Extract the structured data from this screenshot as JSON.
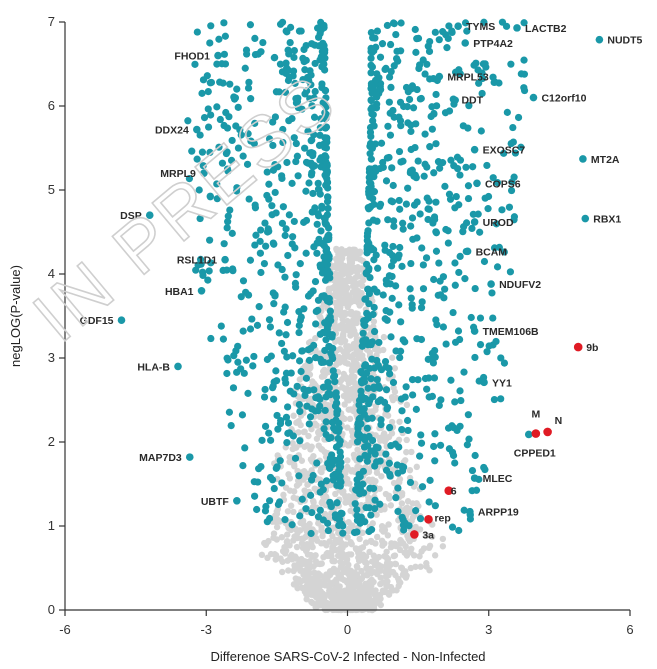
{
  "watermark": "IN PRESS",
  "chart_data": {
    "type": "scatter",
    "title": "",
    "xlabel": "Differenoe SARS-CoV-2 Infected - Non-Infected",
    "ylabel": "negLOG(P-value)",
    "xlim": [
      -6,
      6
    ],
    "ylim": [
      0,
      7
    ],
    "xticks": [
      -6,
      -3,
      0,
      3,
      6
    ],
    "yticks": [
      0,
      1,
      2,
      3,
      4,
      5,
      6,
      7
    ],
    "grid": false,
    "colors": {
      "significant": "#1a98a8",
      "nonsignificant": "#d4d4d4",
      "viral": "#e01b24"
    },
    "labeled_points": [
      {
        "label": "TYMS",
        "x": 2.35,
        "y": 6.95,
        "group": "significant"
      },
      {
        "label": "LACTB2",
        "x": 3.6,
        "y": 6.93,
        "group": "significant"
      },
      {
        "label": "NUDT5",
        "x": 5.35,
        "y": 6.79,
        "group": "significant"
      },
      {
        "label": "PTP4A2",
        "x": 2.5,
        "y": 6.75,
        "group": "significant"
      },
      {
        "label": "FHOD1",
        "x": -2.75,
        "y": 6.6,
        "group": "significant"
      },
      {
        "label": "MRPL53",
        "x": 1.95,
        "y": 6.35,
        "group": "significant"
      },
      {
        "label": "DDT",
        "x": 2.25,
        "y": 6.08,
        "group": "significant"
      },
      {
        "label": "C12orf10",
        "x": 3.95,
        "y": 6.1,
        "group": "significant"
      },
      {
        "label": "DDX24",
        "x": -3.2,
        "y": 5.72,
        "group": "significant"
      },
      {
        "label": "MRPL9",
        "x": -3.05,
        "y": 5.2,
        "group": "significant"
      },
      {
        "label": "EXOSC7",
        "x": 2.7,
        "y": 5.48,
        "group": "significant"
      },
      {
        "label": "MT2A",
        "x": 5.0,
        "y": 5.37,
        "group": "significant"
      },
      {
        "label": "COPS6",
        "x": 2.75,
        "y": 5.08,
        "group": "significant"
      },
      {
        "label": "DSP",
        "x": -4.2,
        "y": 4.7,
        "group": "significant"
      },
      {
        "label": "UROD",
        "x": 2.7,
        "y": 4.62,
        "group": "significant"
      },
      {
        "label": "RBX1",
        "x": 5.05,
        "y": 4.66,
        "group": "significant"
      },
      {
        "label": "RSL1D1",
        "x": -2.6,
        "y": 4.17,
        "group": "significant"
      },
      {
        "label": "BCAM",
        "x": 2.55,
        "y": 4.27,
        "group": "significant"
      },
      {
        "label": "HBA1",
        "x": -3.1,
        "y": 3.8,
        "group": "significant"
      },
      {
        "label": "NDUFV2",
        "x": 3.05,
        "y": 3.88,
        "group": "significant"
      },
      {
        "label": "GDF15",
        "x": -4.8,
        "y": 3.45,
        "group": "significant"
      },
      {
        "label": "TMEM106B",
        "x": 2.7,
        "y": 3.32,
        "group": "significant"
      },
      {
        "label": "HLA-B",
        "x": -3.6,
        "y": 2.9,
        "group": "significant"
      },
      {
        "label": "YY1",
        "x": 2.9,
        "y": 2.71,
        "group": "significant"
      },
      {
        "label": "MAP7D3",
        "x": -3.35,
        "y": 1.82,
        "group": "significant"
      },
      {
        "label": "CPPED1",
        "x": 3.85,
        "y": 2.09,
        "group": "significant"
      },
      {
        "label": "MLEC",
        "x": 2.7,
        "y": 1.57,
        "group": "significant"
      },
      {
        "label": "UBTF",
        "x": -2.35,
        "y": 1.3,
        "group": "significant"
      },
      {
        "label": "ARPP19",
        "x": 2.6,
        "y": 1.17,
        "group": "significant"
      },
      {
        "label": "9b",
        "x": 4.9,
        "y": 3.13,
        "group": "viral"
      },
      {
        "label": "M",
        "x": 4.0,
        "y": 2.1,
        "group": "viral"
      },
      {
        "label": "N",
        "x": 4.25,
        "y": 2.12,
        "group": "viral"
      },
      {
        "label": "6",
        "x": 2.15,
        "y": 1.42,
        "group": "viral"
      },
      {
        "label": "rep",
        "x": 1.72,
        "y": 1.08,
        "group": "viral"
      },
      {
        "label": "3a",
        "x": 1.42,
        "y": 0.9,
        "group": "viral"
      }
    ],
    "significant_envelope": {
      "left": {
        "inner": [
          [
            1,
            -0.1
          ],
          [
            2,
            -0.15
          ],
          [
            3,
            -0.3
          ],
          [
            4,
            -0.38
          ],
          [
            5,
            -0.42
          ],
          [
            6,
            -0.45
          ],
          [
            7,
            -0.5
          ]
        ],
        "outer": [
          [
            1,
            -1.9
          ],
          [
            2,
            -2.6
          ],
          [
            3,
            -3.0
          ],
          [
            4,
            -3.3
          ],
          [
            5,
            -3.4
          ],
          [
            6,
            -3.5
          ],
          [
            7,
            -3.2
          ]
        ]
      },
      "right": {
        "inner": [
          [
            1,
            0.15
          ],
          [
            2,
            0.2
          ],
          [
            3,
            0.3
          ],
          [
            4,
            0.4
          ],
          [
            5,
            0.45
          ],
          [
            6,
            0.5
          ],
          [
            7,
            0.5
          ]
        ],
        "outer": [
          [
            1,
            2.6
          ],
          [
            2,
            3.1
          ],
          [
            3,
            3.4
          ],
          [
            4,
            3.5
          ],
          [
            5,
            3.6
          ],
          [
            6,
            3.8
          ],
          [
            7,
            3.9
          ]
        ]
      },
      "approx_count": 1300
    },
    "nonsignificant_cloud": {
      "shape": "V centered at x=0, widening with y, |x| up to ~2.2 at y=0.6, narrowing to ~0.4 at y=4.3",
      "approx_count": 1800
    }
  }
}
